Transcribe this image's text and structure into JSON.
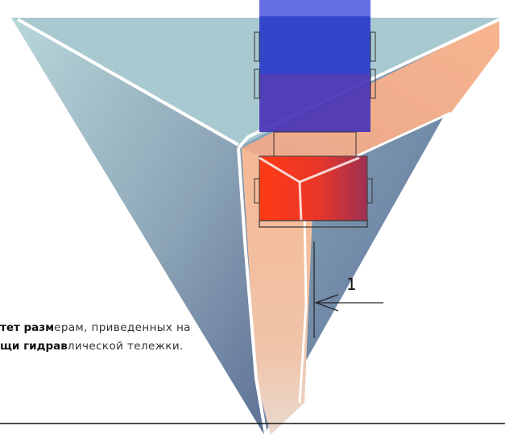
{
  "caption": {
    "line1_bold": "тет разм",
    "line1_rest": "ерам, приведенных на",
    "line2_bold": "щи гидрав",
    "line2_rest": "лической тележки."
  },
  "callout": {
    "number": "1"
  },
  "colors": {
    "pyramid_light": "#b9d6da",
    "pyramid_dark": "#5b6f92",
    "belt_light": "#f0b08e",
    "belt_dark": "#e7d2c6",
    "box_blue": "#2030c8",
    "box_red": "#ff3a1a"
  }
}
